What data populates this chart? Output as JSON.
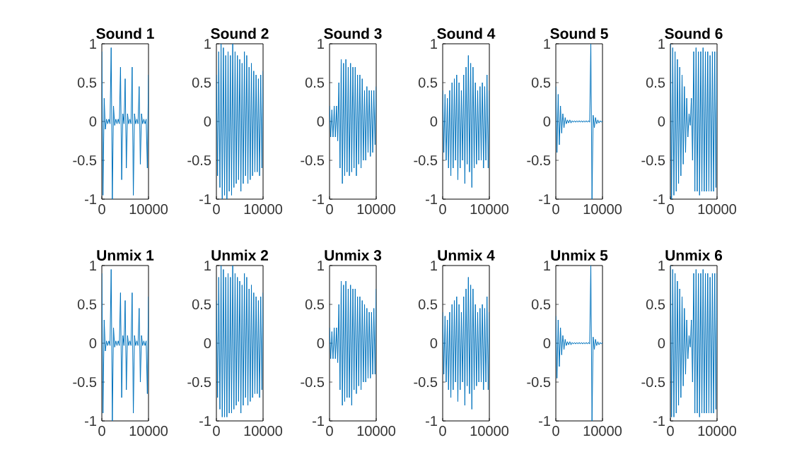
{
  "chart_data": [
    {
      "type": "line",
      "title": "Sound 1",
      "color": "#0072bd",
      "xlim": [
        0,
        10000
      ],
      "ylim": [
        -1,
        1
      ],
      "xticks": [
        0,
        10000
      ],
      "yticks": [
        -1,
        -0.5,
        0,
        0.5,
        1
      ],
      "x": [
        0,
        250,
        500,
        750,
        1000,
        1250,
        1500,
        1750,
        2000,
        2250,
        2500,
        2750,
        3000,
        3250,
        3500,
        3750,
        4000,
        4250,
        4500,
        4750,
        5000,
        5250,
        5500,
        5750,
        6000,
        6250,
        6500,
        6750,
        7000,
        7250,
        7500,
        7750,
        8000,
        8250,
        8500,
        8750,
        9000,
        9250,
        9500,
        9750,
        10000
      ],
      "values": [
        0.9,
        -0.95,
        0.3,
        -0.1,
        0.03,
        -0.03,
        0.03,
        -0.03,
        0.95,
        -1,
        0.2,
        -0.05,
        0.03,
        -0.03,
        0.03,
        -0.03,
        0.7,
        -0.75,
        0.1,
        -0.03,
        0.55,
        -0.6,
        0.1,
        -0.03,
        0.03,
        -0.03,
        0.7,
        -0.95,
        0.1,
        -0.03,
        0.03,
        -0.03,
        0.45,
        -0.55,
        0.1,
        -0.03,
        0.03,
        -0.03,
        0.03,
        -0.6,
        0.6
      ]
    },
    {
      "type": "line",
      "title": "Sound 2",
      "color": "#0072bd",
      "xlim": [
        0,
        10000
      ],
      "ylim": [
        -1,
        1
      ],
      "xticks": [
        0,
        10000
      ],
      "yticks": [
        -1,
        -0.5,
        0,
        0.5,
        1
      ],
      "x": [
        0,
        250,
        500,
        750,
        1000,
        1250,
        1500,
        1750,
        2000,
        2250,
        2500,
        2750,
        3000,
        3250,
        3500,
        3750,
        4000,
        4250,
        4500,
        4750,
        5000,
        5250,
        5500,
        5750,
        6000,
        6250,
        6500,
        6750,
        7000,
        7250,
        7500,
        7750,
        8000,
        8250,
        8500,
        8750,
        9000,
        9250,
        9500,
        9750,
        10000
      ],
      "values": [
        0.6,
        -0.7,
        0.9,
        -0.85,
        1,
        -1,
        0.95,
        -0.95,
        0.85,
        -1,
        0.9,
        -0.9,
        0.85,
        -0.95,
        1,
        -0.85,
        0.9,
        -0.8,
        0.85,
        -0.75,
        0.8,
        -0.9,
        0.75,
        -0.8,
        0.9,
        -0.7,
        0.85,
        -0.8,
        0.7,
        -0.75,
        0.75,
        -0.7,
        0.65,
        -0.65,
        0.6,
        -0.65,
        0.55,
        -0.7,
        0.6,
        -0.6,
        0.65
      ]
    },
    {
      "type": "line",
      "title": "Sound 3",
      "color": "#0072bd",
      "xlim": [
        0,
        10000
      ],
      "ylim": [
        -1,
        1
      ],
      "xticks": [
        0,
        10000
      ],
      "yticks": [
        -1,
        -0.5,
        0,
        0.5,
        1
      ],
      "x": [
        0,
        250,
        500,
        750,
        1000,
        1250,
        1500,
        1750,
        2000,
        2250,
        2500,
        2750,
        3000,
        3250,
        3500,
        3750,
        4000,
        4250,
        4500,
        4750,
        5000,
        5250,
        5500,
        5750,
        6000,
        6250,
        6500,
        6750,
        7000,
        7250,
        7500,
        7750,
        8000,
        8250,
        8500,
        8750,
        9000,
        9250,
        9500,
        9750,
        10000
      ],
      "values": [
        0.2,
        -0.2,
        0.15,
        -0.2,
        0.2,
        -0.2,
        0.2,
        -0.25,
        0.5,
        -0.6,
        0.8,
        -0.8,
        0.75,
        -0.7,
        0.8,
        -0.65,
        0.7,
        -0.7,
        0.75,
        -0.65,
        0.7,
        -0.6,
        0.7,
        -0.7,
        0.6,
        -0.55,
        0.6,
        -0.6,
        0.55,
        -0.5,
        0.4,
        -0.5,
        0.45,
        -0.4,
        0.4,
        -0.45,
        0.4,
        -0.4,
        0.4,
        -0.3,
        0.45
      ]
    },
    {
      "type": "line",
      "title": "Sound 4",
      "color": "#0072bd",
      "xlim": [
        0,
        10000
      ],
      "ylim": [
        -1,
        1
      ],
      "xticks": [
        0,
        10000
      ],
      "yticks": [
        -1,
        -0.5,
        0,
        0.5,
        1
      ],
      "x": [
        0,
        250,
        500,
        750,
        1000,
        1250,
        1500,
        1750,
        2000,
        2250,
        2500,
        2750,
        3000,
        3250,
        3500,
        3750,
        4000,
        4250,
        4500,
        4750,
        5000,
        5250,
        5500,
        5750,
        6000,
        6250,
        6500,
        6750,
        7000,
        7250,
        7500,
        7750,
        8000,
        8250,
        8500,
        8750,
        9000,
        9250,
        9500,
        9750,
        10000
      ],
      "values": [
        0.4,
        -0.4,
        0.35,
        -0.5,
        0.3,
        -0.6,
        0.4,
        -0.7,
        0.5,
        -0.6,
        0.55,
        -0.5,
        0.6,
        -0.75,
        0.5,
        -0.6,
        0.4,
        -0.5,
        0.6,
        -0.8,
        0.7,
        -0.55,
        0.85,
        -0.65,
        0.75,
        -0.85,
        0.7,
        -0.6,
        0.5,
        -0.55,
        0.4,
        -0.5,
        0.45,
        -0.5,
        0.5,
        -0.6,
        0.45,
        -0.5,
        0.6,
        -0.6,
        0.4
      ]
    },
    {
      "type": "line",
      "title": "Sound 5",
      "color": "#0072bd",
      "xlim": [
        0,
        10000
      ],
      "ylim": [
        -1,
        1
      ],
      "xticks": [
        0,
        10000
      ],
      "yticks": [
        -1,
        -0.5,
        0,
        0.5,
        1
      ],
      "x": [
        0,
        250,
        500,
        750,
        1000,
        1250,
        1500,
        1750,
        2000,
        2250,
        2500,
        2750,
        3000,
        3250,
        3500,
        3750,
        4000,
        4250,
        4500,
        4750,
        5000,
        5250,
        5500,
        5750,
        6000,
        6250,
        6500,
        6750,
        7000,
        7250,
        7500,
        7750,
        8000,
        8250,
        8500,
        8750,
        9000,
        9250,
        9500,
        9750,
        10000
      ],
      "values": [
        0.45,
        -0.4,
        0.35,
        -0.3,
        0.2,
        -0.15,
        0.1,
        -0.08,
        0.05,
        -0.03,
        0.02,
        -0.02,
        0.02,
        -0.02,
        0.01,
        -0.01,
        0.01,
        -0.01,
        0.01,
        -0.01,
        0.01,
        -0.01,
        0.01,
        -0.01,
        0.01,
        -0.01,
        0.01,
        -0.01,
        0.01,
        -0.01,
        1,
        -1,
        0.08,
        -0.08,
        0.05,
        -0.03,
        0.02,
        -0.02,
        0.01,
        -0.01,
        0.01
      ]
    },
    {
      "type": "line",
      "title": "Sound 6",
      "color": "#0072bd",
      "xlim": [
        0,
        10000
      ],
      "ylim": [
        -1,
        1
      ],
      "xticks": [
        0,
        10000
      ],
      "yticks": [
        -1,
        -0.5,
        0,
        0.5,
        1
      ],
      "x": [
        0,
        250,
        500,
        750,
        1000,
        1250,
        1500,
        1750,
        2000,
        2250,
        2500,
        2750,
        3000,
        3250,
        3500,
        3750,
        4000,
        4250,
        4500,
        4750,
        5000,
        5250,
        5500,
        5750,
        6000,
        6250,
        6500,
        6750,
        7000,
        7250,
        7500,
        7750,
        8000,
        8250,
        8500,
        8750,
        9000,
        9250,
        9500,
        9750,
        10000
      ],
      "values": [
        1,
        -1,
        0.95,
        -0.95,
        0.9,
        -0.9,
        0.8,
        -0.8,
        0.7,
        -0.7,
        0.6,
        -0.55,
        0.45,
        -0.4,
        0.3,
        -0.2,
        0.1,
        -0.05,
        0.3,
        -0.5,
        0.9,
        -0.9,
        0.95,
        -0.9,
        0.9,
        -0.95,
        0.9,
        -0.9,
        0.95,
        -0.9,
        0.9,
        -0.9,
        0.9,
        -0.9,
        0.85,
        -0.9,
        0.9,
        -0.9,
        0.9,
        -0.85,
        0.9
      ]
    },
    {
      "type": "line",
      "title": "Unmix 1",
      "color": "#0072bd",
      "xlim": [
        0,
        10000
      ],
      "ylim": [
        -1,
        1
      ],
      "xticks": [
        0,
        10000
      ],
      "yticks": [
        -1,
        -0.5,
        0,
        0.5,
        1
      ],
      "x": [
        0,
        250,
        500,
        750,
        1000,
        1250,
        1500,
        1750,
        2000,
        2250,
        2500,
        2750,
        3000,
        3250,
        3500,
        3750,
        4000,
        4250,
        4500,
        4750,
        5000,
        5250,
        5500,
        5750,
        6000,
        6250,
        6500,
        6750,
        7000,
        7250,
        7500,
        7750,
        8000,
        8250,
        8500,
        8750,
        9000,
        9250,
        9500,
        9750,
        10000
      ],
      "values": [
        0.9,
        -0.9,
        0.3,
        -0.1,
        0.03,
        -0.03,
        0.03,
        -0.03,
        0.95,
        -1,
        0.2,
        -0.05,
        0.03,
        -0.03,
        0.03,
        -0.03,
        0.65,
        -0.7,
        0.1,
        -0.03,
        0.55,
        -0.6,
        0.1,
        -0.03,
        0.03,
        -0.03,
        0.65,
        -0.9,
        0.1,
        -0.03,
        0.03,
        -0.03,
        0.45,
        -0.5,
        0.1,
        -0.03,
        0.03,
        -0.03,
        0.03,
        -0.65,
        0.6
      ]
    },
    {
      "type": "line",
      "title": "Unmix 2",
      "color": "#0072bd",
      "xlim": [
        0,
        10000
      ],
      "ylim": [
        -1,
        1
      ],
      "xticks": [
        0,
        10000
      ],
      "yticks": [
        -1,
        -0.5,
        0,
        0.5,
        1
      ],
      "x": [
        0,
        250,
        500,
        750,
        1000,
        1250,
        1500,
        1750,
        2000,
        2250,
        2500,
        2750,
        3000,
        3250,
        3500,
        3750,
        4000,
        4250,
        4500,
        4750,
        5000,
        5250,
        5500,
        5750,
        6000,
        6250,
        6500,
        6750,
        7000,
        7250,
        7500,
        7750,
        8000,
        8250,
        8500,
        8750,
        9000,
        9250,
        9500,
        9750,
        10000
      ],
      "values": [
        0.55,
        -0.7,
        0.85,
        -0.85,
        1,
        -0.95,
        0.95,
        -0.95,
        0.85,
        -0.95,
        0.9,
        -0.9,
        0.85,
        -0.9,
        1,
        -0.85,
        0.9,
        -0.8,
        0.85,
        -0.75,
        0.8,
        -0.9,
        0.75,
        -0.8,
        0.9,
        -0.7,
        0.85,
        -0.8,
        0.7,
        -0.75,
        0.75,
        -0.7,
        0.65,
        -0.65,
        0.6,
        -0.65,
        0.55,
        -0.7,
        0.6,
        -0.6,
        0.65
      ]
    },
    {
      "type": "line",
      "title": "Unmix 3",
      "color": "#0072bd",
      "xlim": [
        0,
        10000
      ],
      "ylim": [
        -1,
        1
      ],
      "xticks": [
        0,
        10000
      ],
      "yticks": [
        -1,
        -0.5,
        0,
        0.5,
        1
      ],
      "x": [
        0,
        250,
        500,
        750,
        1000,
        1250,
        1500,
        1750,
        2000,
        2250,
        2500,
        2750,
        3000,
        3250,
        3500,
        3750,
        4000,
        4250,
        4500,
        4750,
        5000,
        5250,
        5500,
        5750,
        6000,
        6250,
        6500,
        6750,
        7000,
        7250,
        7500,
        7750,
        8000,
        8250,
        8500,
        8750,
        9000,
        9250,
        9500,
        9750,
        10000
      ],
      "values": [
        0.2,
        -0.2,
        0.15,
        -0.2,
        0.2,
        -0.2,
        0.2,
        -0.25,
        0.5,
        -0.6,
        0.8,
        -0.8,
        0.75,
        -0.75,
        0.8,
        -0.7,
        0.7,
        -0.7,
        0.75,
        -0.8,
        0.7,
        -0.6,
        0.7,
        -0.65,
        0.6,
        -0.55,
        0.6,
        -0.6,
        0.55,
        -0.5,
        0.5,
        -0.5,
        0.45,
        -0.45,
        0.4,
        -0.45,
        0.4,
        -0.4,
        0.45,
        -0.4,
        0.7
      ]
    },
    {
      "type": "line",
      "title": "Unmix 4",
      "color": "#0072bd",
      "xlim": [
        0,
        10000
      ],
      "ylim": [
        -1,
        1
      ],
      "xticks": [
        0,
        10000
      ],
      "yticks": [
        -1,
        -0.5,
        0,
        0.5,
        1
      ],
      "x": [
        0,
        250,
        500,
        750,
        1000,
        1250,
        1500,
        1750,
        2000,
        2250,
        2500,
        2750,
        3000,
        3250,
        3500,
        3750,
        4000,
        4250,
        4500,
        4750,
        5000,
        5250,
        5500,
        5750,
        6000,
        6250,
        6500,
        6750,
        7000,
        7250,
        7500,
        7750,
        8000,
        8250,
        8500,
        8750,
        9000,
        9250,
        9500,
        9750,
        10000
      ],
      "values": [
        0.4,
        -0.4,
        0.35,
        -0.5,
        0.3,
        -0.6,
        0.4,
        -0.7,
        0.5,
        -0.6,
        0.55,
        -0.5,
        0.6,
        -0.75,
        0.5,
        -0.6,
        0.4,
        -0.5,
        0.6,
        -0.8,
        0.7,
        -0.55,
        0.85,
        -0.65,
        0.75,
        -0.85,
        0.7,
        -0.6,
        0.5,
        -0.55,
        0.4,
        -0.5,
        0.45,
        -0.5,
        0.5,
        -0.6,
        0.45,
        -0.5,
        0.6,
        -0.6,
        0.4
      ]
    },
    {
      "type": "line",
      "title": "Unmix 5",
      "color": "#0072bd",
      "xlim": [
        0,
        10000
      ],
      "ylim": [
        -1,
        1
      ],
      "xticks": [
        0,
        10000
      ],
      "yticks": [
        -1,
        -0.5,
        0,
        0.5,
        1
      ],
      "x": [
        0,
        250,
        500,
        750,
        1000,
        1250,
        1500,
        1750,
        2000,
        2250,
        2500,
        2750,
        3000,
        3250,
        3500,
        3750,
        4000,
        4250,
        4500,
        4750,
        5000,
        5250,
        5500,
        5750,
        6000,
        6250,
        6500,
        6750,
        7000,
        7250,
        7500,
        7750,
        8000,
        8250,
        8500,
        8750,
        9000,
        9250,
        9500,
        9750,
        10000
      ],
      "values": [
        0.35,
        -0.45,
        0.3,
        -0.3,
        0.2,
        -0.15,
        0.1,
        -0.08,
        0.05,
        -0.03,
        0.02,
        -0.02,
        0.02,
        -0.02,
        0.01,
        -0.01,
        0.01,
        -0.01,
        0.01,
        -0.01,
        0.01,
        -0.01,
        0.01,
        -0.01,
        0.01,
        -0.01,
        0.01,
        -0.01,
        0.01,
        -0.01,
        1,
        -1,
        0.08,
        -0.08,
        0.05,
        -0.03,
        0.02,
        -0.02,
        0.01,
        -0.01,
        0.01
      ]
    },
    {
      "type": "line",
      "title": "Unmix 6",
      "color": "#0072bd",
      "xlim": [
        0,
        10000
      ],
      "ylim": [
        -1,
        1
      ],
      "xticks": [
        0,
        10000
      ],
      "yticks": [
        -1,
        -0.5,
        0,
        0.5,
        1
      ],
      "x": [
        0,
        250,
        500,
        750,
        1000,
        1250,
        1500,
        1750,
        2000,
        2250,
        2500,
        2750,
        3000,
        3250,
        3500,
        3750,
        4000,
        4250,
        4500,
        4750,
        5000,
        5250,
        5500,
        5750,
        6000,
        6250,
        6500,
        6750,
        7000,
        7250,
        7500,
        7750,
        8000,
        8250,
        8500,
        8750,
        9000,
        9250,
        9500,
        9750,
        10000
      ],
      "values": [
        1,
        -0.95,
        0.95,
        -0.95,
        0.9,
        -0.9,
        0.8,
        -0.8,
        0.7,
        -0.7,
        0.6,
        -0.55,
        0.45,
        -0.4,
        0.3,
        -0.2,
        0.1,
        -0.05,
        0.3,
        -0.5,
        0.9,
        -0.9,
        0.95,
        -0.9,
        0.9,
        -0.95,
        0.9,
        -0.9,
        0.95,
        -0.9,
        0.9,
        -0.9,
        0.9,
        -0.9,
        0.85,
        -0.9,
        0.9,
        -0.9,
        0.9,
        -0.85,
        0.9
      ]
    }
  ]
}
